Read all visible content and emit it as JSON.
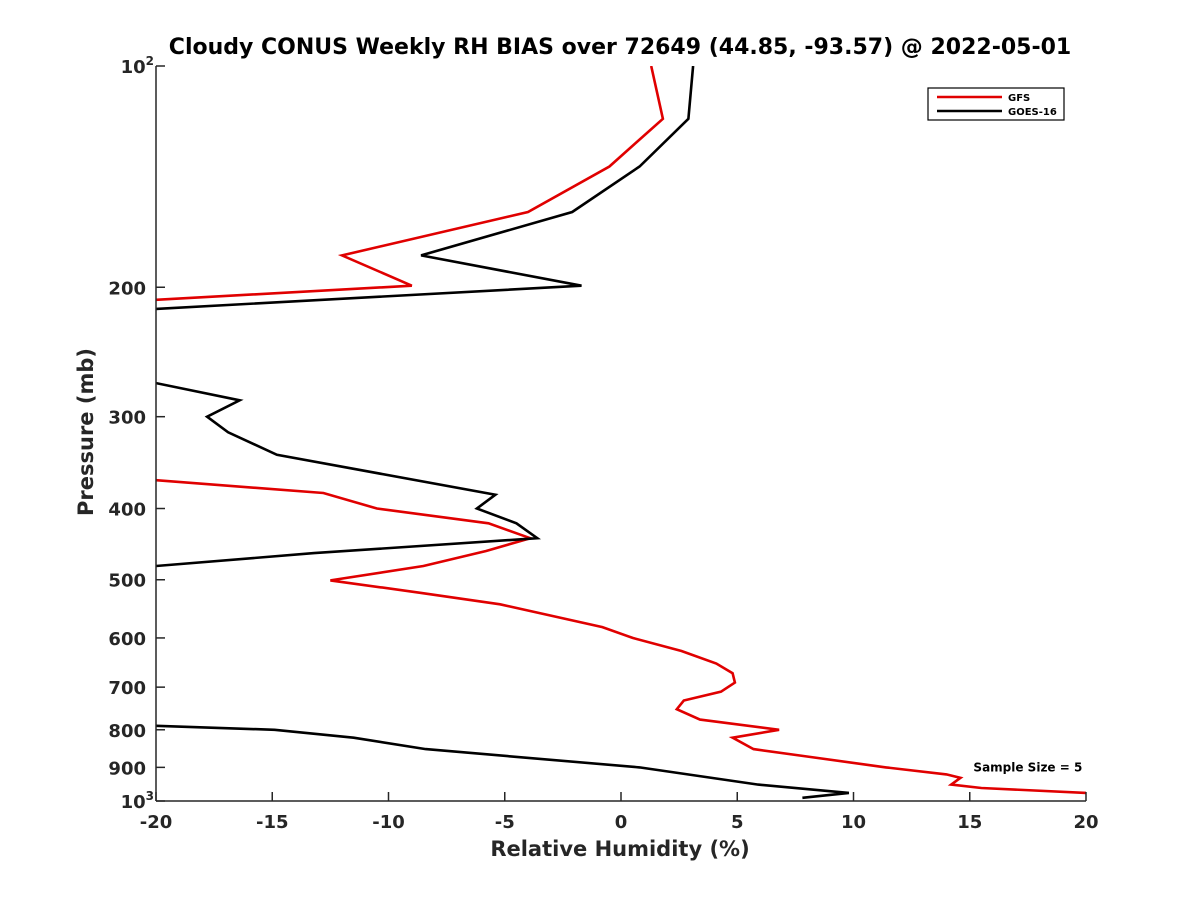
{
  "chart_data": {
    "type": "line",
    "title": "Cloudy CONUS Weekly RH BIAS over 72649 (44.85, -93.57) @ 2022-05-01",
    "xlabel": "Relative Humidity (%)",
    "ylabel": "Pressure (mb)",
    "xlim": [
      -20,
      20
    ],
    "ylim": [
      100,
      1000
    ],
    "y_scale": "log",
    "y_reversed": true,
    "x_ticks": [
      {
        "value": -20,
        "label": "-20"
      },
      {
        "value": -15,
        "label": "-15"
      },
      {
        "value": -10,
        "label": "-10"
      },
      {
        "value": -5,
        "label": "-5"
      },
      {
        "value": 0,
        "label": "0"
      },
      {
        "value": 5,
        "label": "5"
      },
      {
        "value": 10,
        "label": "10"
      },
      {
        "value": 15,
        "label": "15"
      },
      {
        "value": 20,
        "label": "20"
      }
    ],
    "y_ticks": [
      {
        "value": 100,
        "label": "10",
        "exp": "2"
      },
      {
        "value": 200,
        "label": "200"
      },
      {
        "value": 300,
        "label": "300"
      },
      {
        "value": 400,
        "label": "400"
      },
      {
        "value": 500,
        "label": "500"
      },
      {
        "value": 600,
        "label": "600"
      },
      {
        "value": 700,
        "label": "700"
      },
      {
        "value": 800,
        "label": "800"
      },
      {
        "value": 900,
        "label": "900"
      },
      {
        "value": 1000,
        "label": "10",
        "exp": "3"
      }
    ],
    "grid": false,
    "legend_position": "top-right",
    "series": [
      {
        "name": "GFS",
        "color": "#e00000",
        "segments": [
          [
            [
              1.3,
              100
            ],
            [
              1.8,
              118
            ],
            [
              -0.5,
              137
            ],
            [
              -4,
              158
            ],
            [
              -12,
              181
            ],
            [
              -9,
              199
            ],
            [
              -20,
              208
            ]
          ],
          [
            [
              -20,
              366
            ],
            [
              -12.8,
              381
            ],
            [
              -10.5,
              400
            ],
            [
              -5.7,
              419
            ],
            [
              -3.9,
              439
            ],
            [
              -5.8,
              457
            ],
            [
              -8.5,
              479
            ],
            [
              -12.5,
              501
            ],
            [
              -8.6,
              521
            ],
            [
              -5.2,
              540
            ],
            [
              -0.8,
              580
            ],
            [
              0.5,
              600
            ],
            [
              2.6,
              625
            ],
            [
              4.1,
              650
            ],
            [
              4.8,
              670
            ],
            [
              4.9,
              690
            ],
            [
              4.3,
              710
            ],
            [
              2.7,
              730
            ],
            [
              2.4,
              750
            ],
            [
              3.4,
              775
            ],
            [
              6.8,
              800
            ],
            [
              4.8,
              820
            ],
            [
              5.7,
              850
            ],
            [
              8.0,
              870
            ],
            [
              11.4,
              900
            ],
            [
              14.0,
              920
            ],
            [
              14.6,
              930
            ],
            [
              14.2,
              950
            ],
            [
              15.5,
              960
            ],
            [
              20,
              975
            ]
          ]
        ]
      },
      {
        "name": "GOES-16",
        "color": "#000000",
        "segments": [
          [
            [
              3.1,
              100
            ],
            [
              2.9,
              118
            ],
            [
              0.8,
              137
            ],
            [
              -2.1,
              158
            ],
            [
              -8.6,
              181
            ],
            [
              -1.7,
              199
            ],
            [
              -20,
              214
            ]
          ],
          [
            [
              -20,
              270
            ],
            [
              -16.4,
              285
            ],
            [
              -17.8,
              300
            ],
            [
              -16.9,
              315
            ],
            [
              -14.8,
              338
            ],
            [
              -5.4,
              383
            ],
            [
              -6.2,
              400
            ],
            [
              -4.5,
              419
            ],
            [
              -3.6,
              439
            ],
            [
              -13.2,
              460
            ],
            [
              -20,
              479
            ]
          ],
          [
            [
              -20,
              790
            ],
            [
              -14.9,
              800
            ],
            [
              -11.5,
              820
            ],
            [
              -8.4,
              850
            ],
            [
              0.8,
              900
            ],
            [
              5.9,
              950
            ],
            [
              9.8,
              975
            ],
            [
              7.8,
              990
            ]
          ]
        ]
      }
    ],
    "annotations": [
      {
        "text": "Sample Size = 5",
        "x": 17.5,
        "y": 900
      }
    ]
  }
}
